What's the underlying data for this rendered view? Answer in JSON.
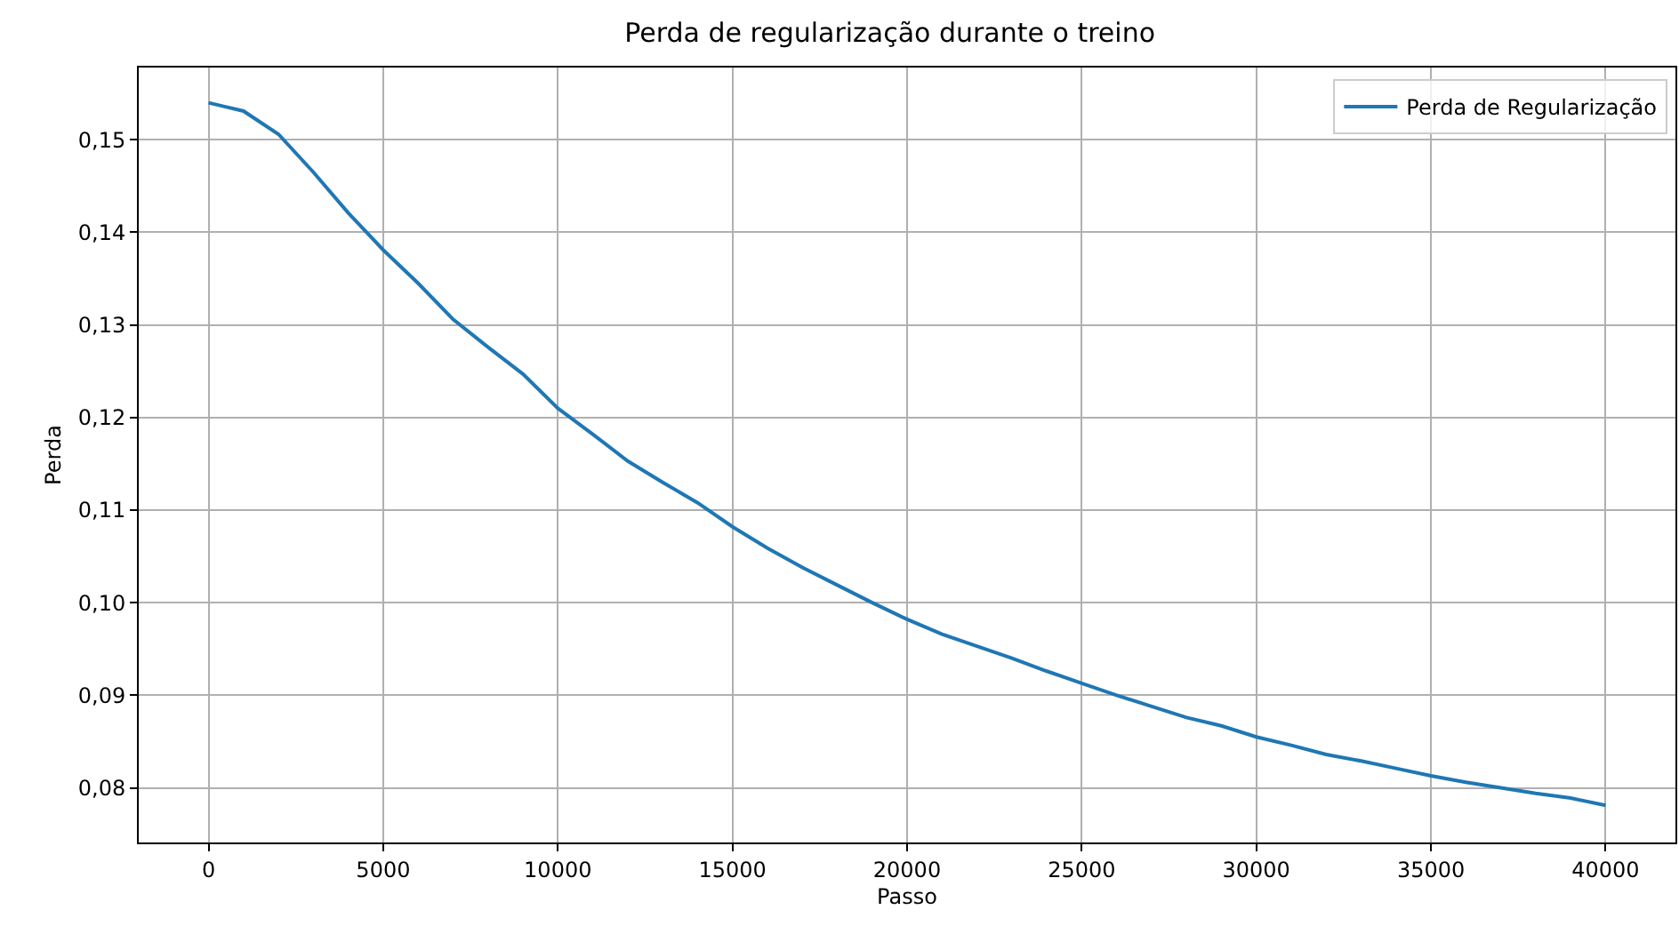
{
  "chart_data": {
    "type": "line",
    "title": "Perda de regularização durante o treino",
    "xlabel": "Passo",
    "ylabel": "Perda",
    "x": [
      0,
      1000,
      2000,
      3000,
      4000,
      5000,
      6000,
      7000,
      8000,
      9000,
      10000,
      11000,
      12000,
      13000,
      14000,
      15000,
      16000,
      17000,
      18000,
      19000,
      20000,
      21000,
      22000,
      23000,
      24000,
      25000,
      26000,
      27000,
      28000,
      29000,
      30000,
      31000,
      32000,
      33000,
      34000,
      35000,
      36000,
      37000,
      38000,
      39000,
      40000
    ],
    "series": [
      {
        "name": "Perda de Regularização",
        "color": "#1f77b4",
        "values": [
          0.154,
          0.1531,
          0.1506,
          0.1465,
          0.1421,
          0.1381,
          0.1345,
          0.1306,
          0.1276,
          0.1247,
          0.121,
          0.1182,
          0.1153,
          0.113,
          0.1108,
          0.1082,
          0.1059,
          0.1038,
          0.1019,
          0.1,
          0.0982,
          0.0966,
          0.0953,
          0.094,
          0.0926,
          0.0913,
          0.09,
          0.0888,
          0.0876,
          0.0867,
          0.0855,
          0.0846,
          0.0836,
          0.0829,
          0.0821,
          0.0813,
          0.0806,
          0.08,
          0.0794,
          0.0789,
          0.0781
        ]
      }
    ],
    "xlim": [
      -2000,
      42000
    ],
    "xticks": [
      0,
      5000,
      10000,
      15000,
      20000,
      25000,
      30000,
      35000,
      40000
    ],
    "ylim": [
      0.0741,
      0.1578
    ],
    "yticks": [
      {
        "value": 0.08,
        "label": "0,08"
      },
      {
        "value": 0.09,
        "label": "0,09"
      },
      {
        "value": 0.1,
        "label": "0,10"
      },
      {
        "value": 0.11,
        "label": "0,11"
      },
      {
        "value": 0.12,
        "label": "0,12"
      },
      {
        "value": 0.13,
        "label": "0,13"
      },
      {
        "value": 0.14,
        "label": "0,14"
      },
      {
        "value": 0.15,
        "label": "0,15"
      }
    ],
    "grid": true,
    "legend": "top right",
    "marker": "none",
    "line_style": "solid"
  }
}
